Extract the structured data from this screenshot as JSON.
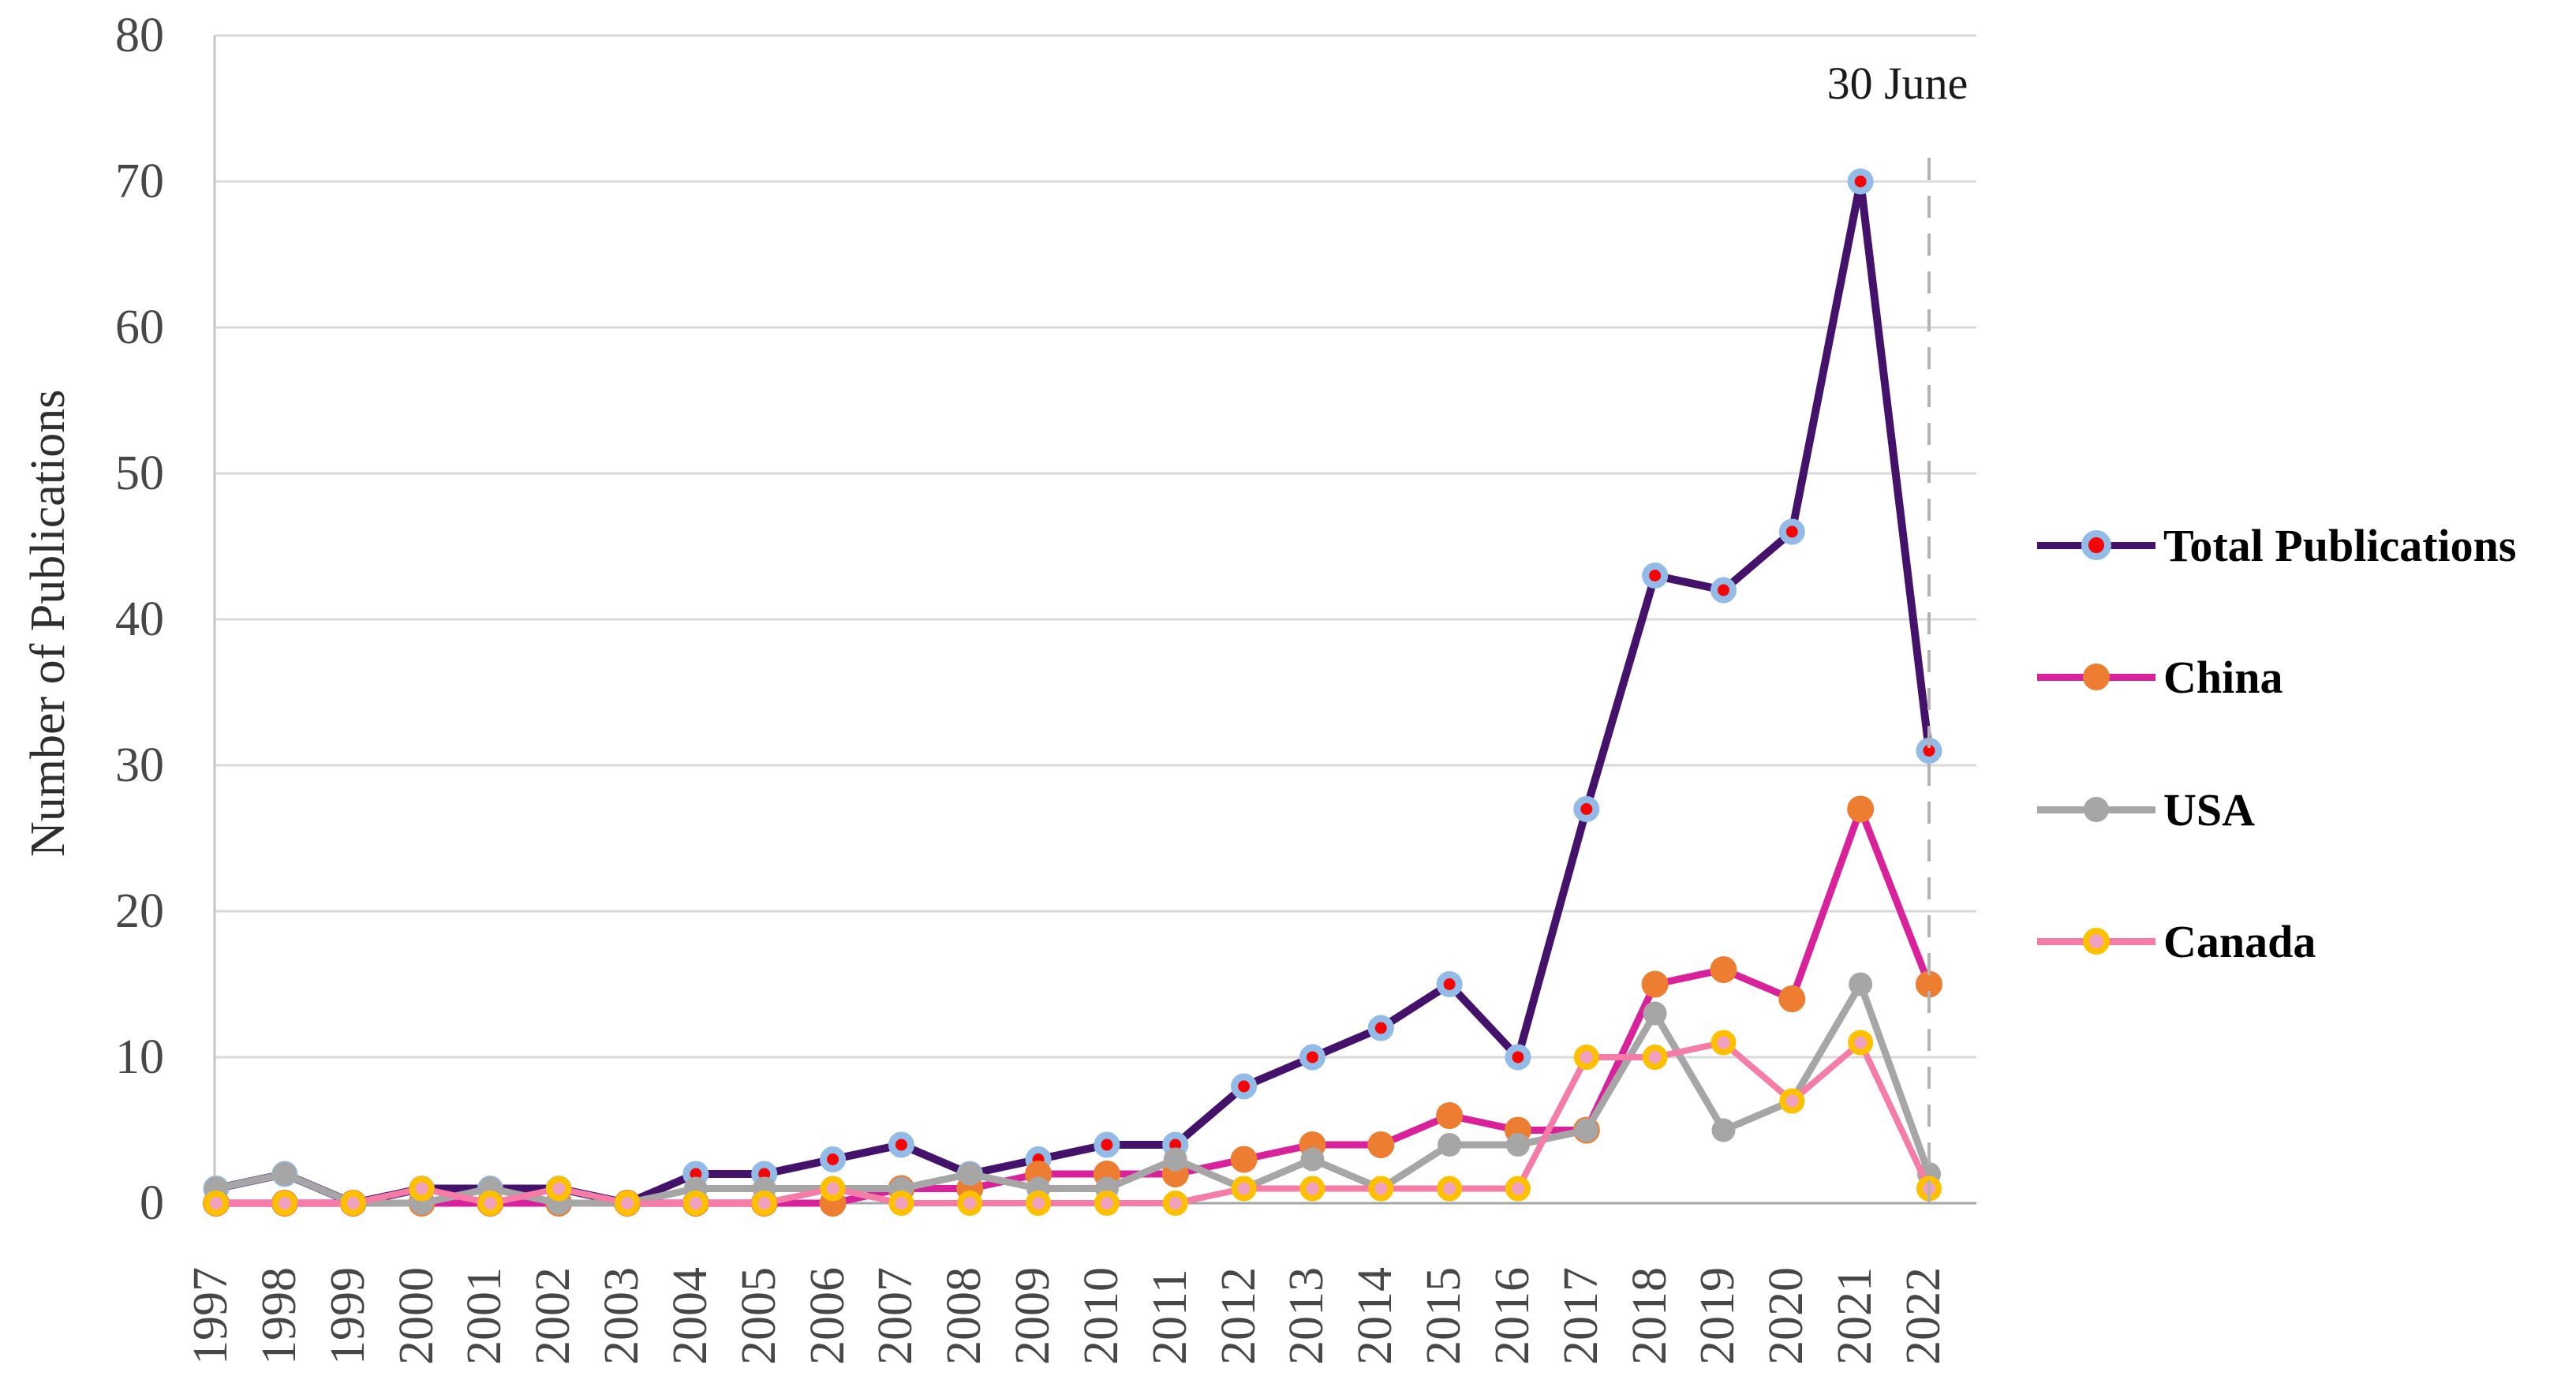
{
  "chart_data": {
    "type": "line",
    "title": "",
    "ylabel": "Number of Publications",
    "xlabel": "",
    "annotation": "30 June",
    "grid": "horizontal",
    "legend_position": "right",
    "ylim": [
      0,
      80
    ],
    "ytick_step": 10,
    "yticks": [
      0,
      10,
      20,
      30,
      40,
      50,
      60,
      70,
      80
    ],
    "x": [
      1997,
      1998,
      1999,
      2000,
      2001,
      2002,
      2003,
      2004,
      2005,
      2006,
      2007,
      2008,
      2009,
      2010,
      2011,
      2012,
      2013,
      2014,
      2015,
      2016,
      2017,
      2018,
      2019,
      2020,
      2021,
      2022
    ],
    "dashed_vline_x": 2022,
    "dashed_vline_color": "#b3b3b3",
    "series": [
      {
        "name": "Total Publications",
        "line_color": "#44126b",
        "marker_fill": "#f50505",
        "marker_ring": "#93bbe8",
        "values": [
          1,
          2,
          0,
          1,
          1,
          1,
          0,
          2,
          2,
          3,
          4,
          2,
          3,
          4,
          4,
          8,
          10,
          12,
          15,
          10,
          27,
          43,
          42,
          46,
          70,
          31
        ]
      },
      {
        "name": "China",
        "line_color": "#d9219c",
        "marker_fill": "#ed7d31",
        "marker_ring": "#ed7d31",
        "values": [
          0,
          0,
          0,
          0,
          0,
          0,
          0,
          0,
          0,
          0,
          1,
          1,
          2,
          2,
          2,
          3,
          4,
          4,
          6,
          5,
          5,
          15,
          16,
          14,
          27,
          15
        ]
      },
      {
        "name": "USA",
        "line_color": "#a6a6a6",
        "marker_fill": "#a6a6a6",
        "marker_ring": "#a6a6a6",
        "values": [
          1,
          2,
          0,
          0,
          1,
          0,
          0,
          1,
          1,
          1,
          1,
          2,
          1,
          1,
          3,
          1,
          3,
          1,
          4,
          4,
          5,
          13,
          5,
          7,
          15,
          2
        ]
      },
      {
        "name": "Canada",
        "line_color": "#f57ca6",
        "marker_fill": "#f0a1c1",
        "marker_ring": "#ffc000",
        "values": [
          0,
          0,
          0,
          1,
          0,
          1,
          0,
          0,
          0,
          1,
          0,
          0,
          0,
          0,
          0,
          1,
          1,
          1,
          1,
          1,
          10,
          10,
          11,
          7,
          11,
          1
        ]
      }
    ]
  }
}
